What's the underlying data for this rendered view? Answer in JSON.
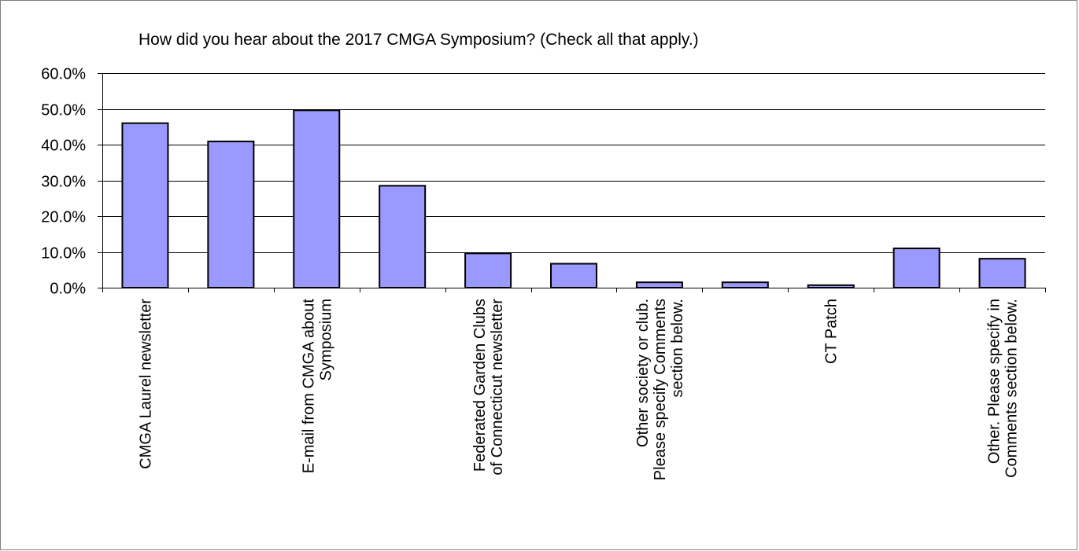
{
  "chart_data": {
    "type": "bar",
    "title": "How did you hear about the 2017 CMGA Symposium? (Check all that apply.)",
    "xlabel": "",
    "ylabel": "",
    "ylim": [
      0,
      60
    ],
    "yticks": [
      "0.0%",
      "10.0%",
      "20.0%",
      "30.0%",
      "40.0%",
      "50.0%",
      "60.0%"
    ],
    "grid": true,
    "legend": "none",
    "bar_color": "#9999ff",
    "bar_stroke": "#000000",
    "categories": [
      "CMGA Laurel newsletter",
      "",
      "E-mail from CMGA about Symposium",
      "",
      "Federated Garden Clubs of Connecticut newsletter",
      "",
      "Other society or club. Please specify Comments section below.",
      "",
      "CT Patch",
      "",
      "Other.  Please specify in Comments section below."
    ],
    "category_lines": [
      [
        "CMGA Laurel newsletter"
      ],
      [],
      [
        "E-mail from CMGA about",
        "Symposium"
      ],
      [],
      [
        "Federated Garden Clubs",
        "of Connecticut newsletter"
      ],
      [],
      [
        "Other society or club.",
        "Please specify Comments",
        "section below."
      ],
      [],
      [
        "CT Patch"
      ],
      [],
      [
        "Other.  Please specify in",
        "Comments section below."
      ]
    ],
    "values": [
      46.0,
      40.9,
      49.6,
      28.5,
      9.6,
      6.7,
      1.5,
      1.5,
      0.7,
      11.0,
      8.1
    ]
  }
}
